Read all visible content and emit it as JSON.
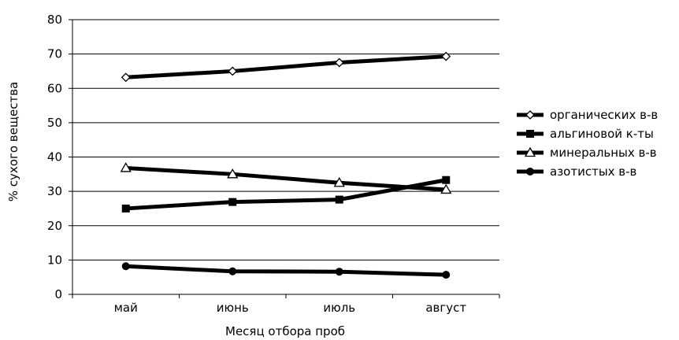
{
  "chart_data": {
    "type": "line",
    "title": "",
    "xlabel": "Месяц отбора проб",
    "ylabel": "% сухого вещества",
    "ylim": [
      0,
      80
    ],
    "yticks": [
      0,
      10,
      20,
      30,
      40,
      50,
      60,
      70,
      80
    ],
    "grid": "horizontal",
    "legend": "right",
    "categories": [
      "май",
      "июнь",
      "июль",
      "август"
    ],
    "series": [
      {
        "name": "органических в-в",
        "marker": "diamond",
        "color": "#000000",
        "values": [
          63.2,
          65.0,
          67.5,
          69.3
        ]
      },
      {
        "name": "альгиновой к-ты",
        "marker": "square",
        "color": "#000000",
        "values": [
          25.0,
          26.9,
          27.6,
          33.3
        ]
      },
      {
        "name": "минеральных в-в",
        "marker": "triangle",
        "color": "#000000",
        "values": [
          36.8,
          35.0,
          32.5,
          30.5
        ]
      },
      {
        "name": "азотистых в-в",
        "marker": "circle",
        "color": "#000000",
        "values": [
          8.2,
          6.7,
          6.6,
          5.7
        ]
      }
    ]
  }
}
